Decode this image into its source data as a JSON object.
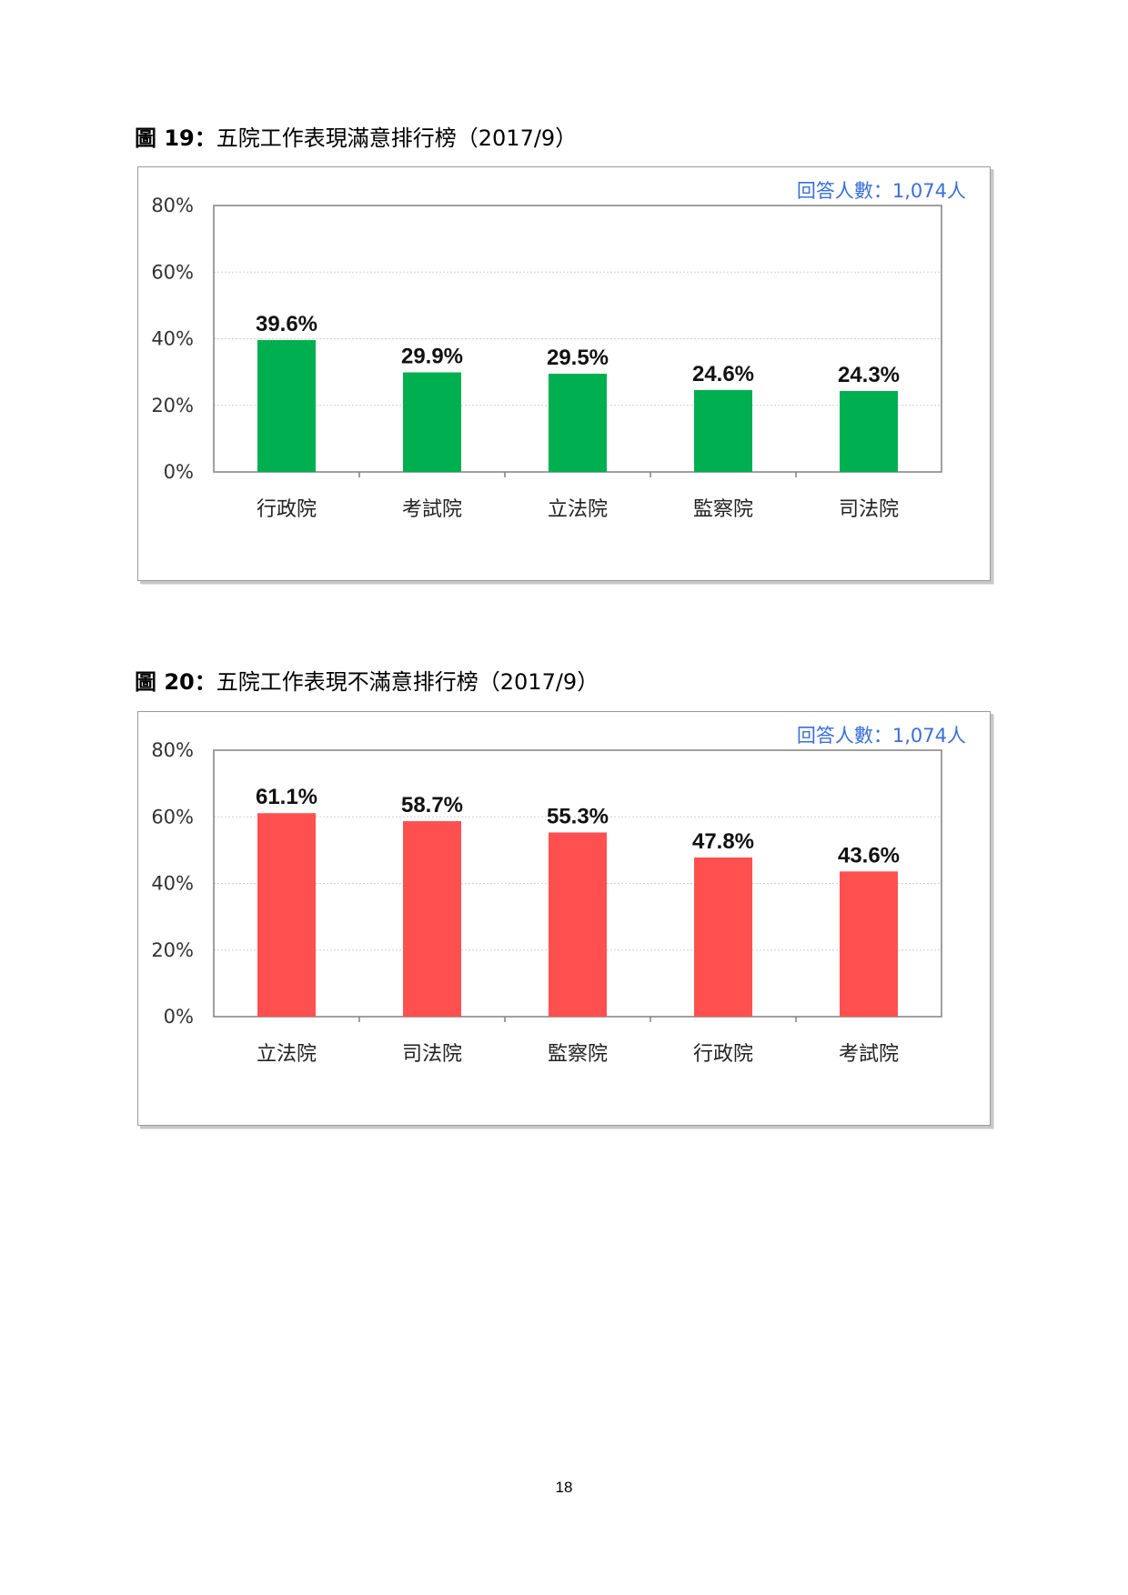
{
  "figure19": {
    "title_num": "圖 19：",
    "title_text": "五院工作表現滿意排行榜（2017/9）",
    "respondents": "回答人數：1,074人"
  },
  "figure20": {
    "title_num": "圖 20：",
    "title_text": "五院工作表現不滿意排行榜（2017/9）",
    "respondents": "回答人數：1,074人"
  },
  "page_number": "18",
  "colors": {
    "satisfied": "#00b050",
    "dissatisfied": "#ff5050",
    "grid": "#d0d0d0",
    "axis": "#808080"
  },
  "chart_data": [
    {
      "type": "bar",
      "title": "五院工作表現滿意排行榜（2017/9）",
      "categories": [
        "行政院",
        "考試院",
        "立法院",
        "監察院",
        "司法院"
      ],
      "values": [
        39.6,
        29.9,
        29.5,
        24.6,
        24.3
      ],
      "value_labels": [
        "39.6%",
        "29.9%",
        "29.5%",
        "24.6%",
        "24.3%"
      ],
      "ylim": [
        0,
        80
      ],
      "yticks": [
        0,
        20,
        40,
        60,
        80
      ],
      "ytick_labels": [
        "0%",
        "20%",
        "40%",
        "60%",
        "80%"
      ],
      "xlabel": "",
      "ylabel": "",
      "color": "#00b050",
      "grid": true
    },
    {
      "type": "bar",
      "title": "五院工作表現不滿意排行榜（2017/9）",
      "categories": [
        "立法院",
        "司法院",
        "監察院",
        "行政院",
        "考試院"
      ],
      "values": [
        61.1,
        58.7,
        55.3,
        47.8,
        43.6
      ],
      "value_labels": [
        "61.1%",
        "58.7%",
        "55.3%",
        "47.8%",
        "43.6%"
      ],
      "ylim": [
        0,
        80
      ],
      "yticks": [
        0,
        20,
        40,
        60,
        80
      ],
      "ytick_labels": [
        "0%",
        "20%",
        "40%",
        "60%",
        "80%"
      ],
      "xlabel": "",
      "ylabel": "",
      "color": "#ff5050",
      "grid": true
    }
  ]
}
